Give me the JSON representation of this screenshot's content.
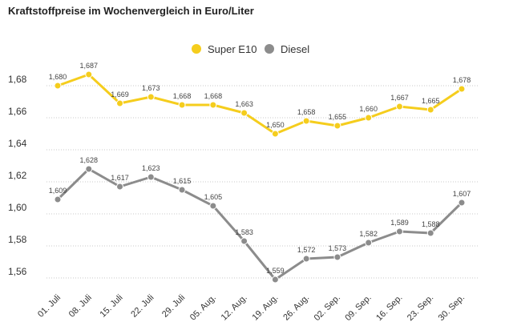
{
  "title": "Kraftstoffpreise im Wochenvergleich in Euro/Liter",
  "chart_data": {
    "type": "line",
    "categories": [
      "01. Juli",
      "08. Juli",
      "15. Juli",
      "22. Juli",
      "29. Juli",
      "05. Aug.",
      "12. Aug.",
      "19. Aug.",
      "26. Aug.",
      "02. Sep.",
      "09. Sep.",
      "16. Sep.",
      "23. Sep.",
      "30. Sep."
    ],
    "series": [
      {
        "name": "Super E10",
        "color": "#f5cd1d",
        "values": [
          1.68,
          1.687,
          1.669,
          1.673,
          1.668,
          1.668,
          1.663,
          1.65,
          1.658,
          1.655,
          1.66,
          1.667,
          1.665,
          1.678
        ],
        "labels": [
          "1,680",
          "1,687",
          "1,669",
          "1,673",
          "1,668",
          "1,668",
          "1,663",
          "1,650",
          "1,658",
          "1,655",
          "1,660",
          "1,667",
          "1,665",
          "1,678"
        ]
      },
      {
        "name": "Diesel",
        "color": "#8c8c8c",
        "values": [
          1.609,
          1.628,
          1.617,
          1.623,
          1.615,
          1.605,
          1.583,
          1.559,
          1.572,
          1.573,
          1.582,
          1.589,
          1.588,
          1.607
        ],
        "labels": [
          "1,609",
          "1,628",
          "1,617",
          "1,623",
          "1,615",
          "1,605",
          "1,583",
          "1,559",
          "1,572",
          "1,573",
          "1,582",
          "1,589",
          "1,588",
          "1,607"
        ]
      }
    ],
    "yticks": [
      1.56,
      1.58,
      1.6,
      1.62,
      1.64,
      1.66,
      1.68
    ],
    "ytick_labels": [
      "1,56",
      "1,58",
      "1,60",
      "1,62",
      "1,64",
      "1,66",
      "1,68"
    ],
    "ylim": [
      1.55,
      1.69
    ],
    "grid": true,
    "legend_position": "top-center"
  }
}
